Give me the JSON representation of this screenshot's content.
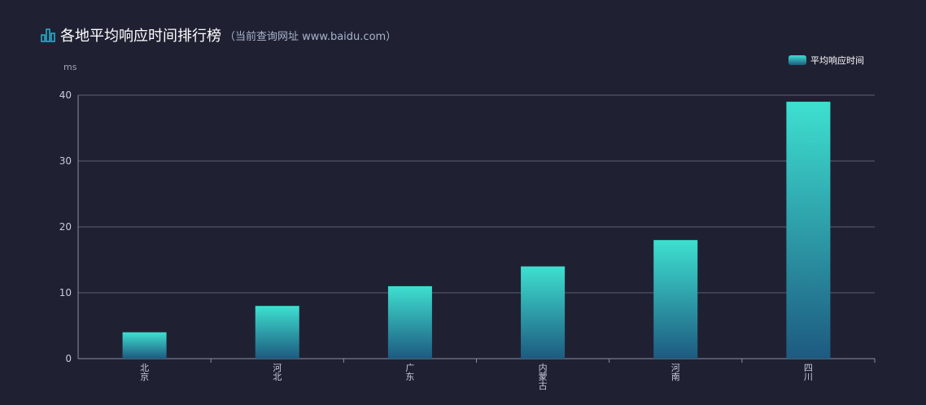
{
  "header": {
    "title": "各地平均响应时间排行榜",
    "subtitle": "（当前查询网址 www.baidu.com）",
    "icon": "bar-chart-icon"
  },
  "chart_data": {
    "type": "bar",
    "title": "各地平均响应时间排行榜",
    "ylabel": "ms",
    "xlabel": "",
    "categories": [
      "北京",
      "河北",
      "广东",
      "内蒙古",
      "河南",
      "四川"
    ],
    "series": [
      {
        "name": "平均响应时间",
        "values": [
          4,
          8,
          11,
          14,
          18,
          39
        ]
      }
    ],
    "ylim": [
      0,
      40
    ],
    "yticks": [
      0,
      10,
      20,
      30,
      40
    ],
    "grid": true,
    "legend": "top-right",
    "colors": {
      "bar_top": "#3ee0d0",
      "bar_bottom": "#1d5a80",
      "background": "#1f2133",
      "grid": "#5a5e70"
    }
  }
}
